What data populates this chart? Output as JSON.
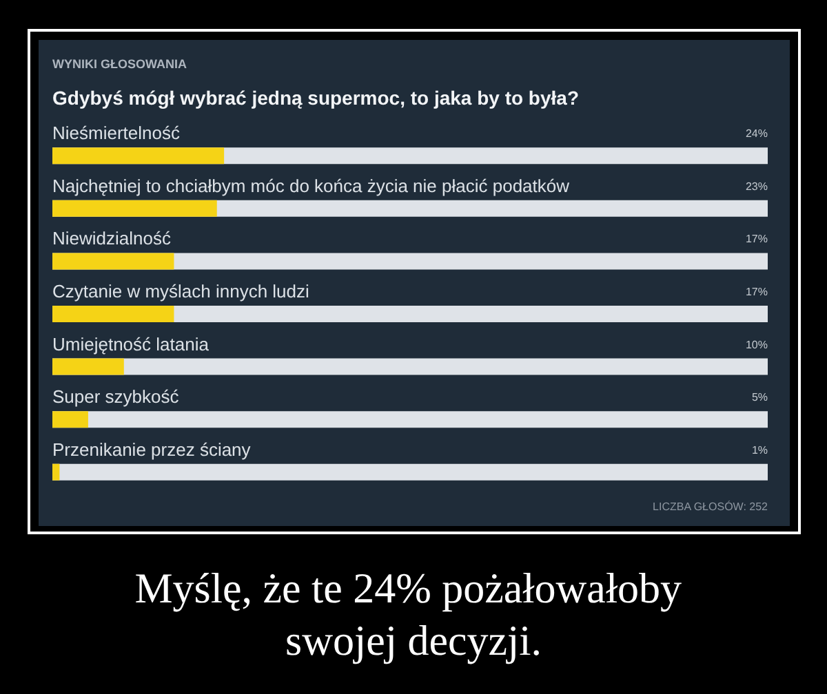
{
  "chart_data": {
    "type": "bar",
    "orientation": "horizontal",
    "subtitle": "WYNIKI GŁOSOWANIA",
    "title": "Gdybyś mógł wybrać jedną supermoc, to jaka by to była?",
    "categories": [
      "Nieśmiertelność",
      "Najchętniej to chciałbym móc do końca życia nie płacić podatków",
      "Niewidzialność",
      "Czytanie w myślach innych ludzi",
      "Umiejętność latania",
      "Super szybkość",
      "Przenikanie przez ściany"
    ],
    "values": [
      24,
      23,
      17,
      17,
      10,
      5,
      1
    ],
    "value_labels": [
      "24%",
      "23%",
      "17%",
      "17%",
      "10%",
      "5%",
      "1%"
    ],
    "color": "#f5d316",
    "xlim": [
      0,
      100
    ],
    "tick_labels": false,
    "annotations": [
      "LICZBA GŁOSÓW: 252",
      "Myślę, że te 24% pożałowałoby swojej decyzji."
    ]
  }
}
